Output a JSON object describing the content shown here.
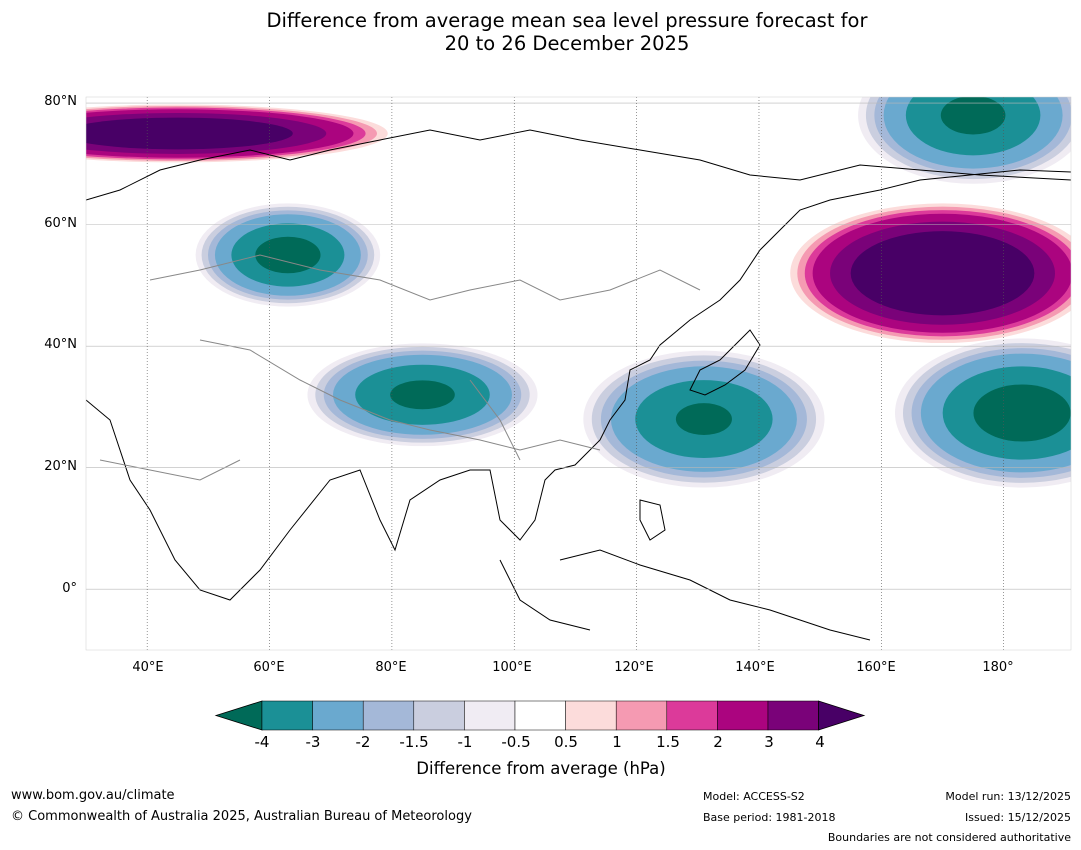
{
  "chart_data": {
    "type": "heatmap",
    "title_line1": "Difference from average mean sea level pressure forecast for",
    "title_line2": "20 to 26 December 2025",
    "x_axis": {
      "ticks": [
        "40°E",
        "60°E",
        "80°E",
        "100°E",
        "120°E",
        "140°E",
        "160°E",
        "180°"
      ],
      "range": [
        30,
        191
      ]
    },
    "y_axis": {
      "ticks": [
        "80°N",
        "60°N",
        "40°N",
        "20°N",
        "0°"
      ],
      "range": [
        -10,
        81
      ]
    },
    "colorbar": {
      "label": "Difference from average (hPa)",
      "tick_labels": [
        "-4",
        "-3",
        "-2",
        "-1.5",
        "-1",
        "-0.5",
        "0.5",
        "1",
        "1.5",
        "2",
        "3",
        "4"
      ],
      "levels": [
        -4,
        -3,
        -2,
        -1.5,
        -1,
        -0.5,
        0.5,
        1,
        1.5,
        2,
        3,
        4
      ],
      "colors": [
        "#006a58",
        "#1b9096",
        "#6aa9cf",
        "#a4b8d8",
        "#cacedf",
        "#f0ecf3",
        "#ffffff",
        "#fcdcdb",
        "#f59ab2",
        "#dc3a9a",
        "#ab047f",
        "#7a0279",
        "#480066"
      ],
      "extend": "both"
    },
    "anomaly_centres": [
      {
        "lon": 63,
        "lat": 55,
        "value": -4.5
      },
      {
        "lon": 85,
        "lat": 32,
        "value": -4.3
      },
      {
        "lon": 131,
        "lat": 28,
        "value": -4.2
      },
      {
        "lon": 183,
        "lat": 29,
        "value": -4.6
      },
      {
        "lon": 175,
        "lat": 78,
        "value": -4.3
      },
      {
        "lon": 45,
        "lat": 75,
        "value": 5.5
      },
      {
        "lon": 170,
        "lat": 52,
        "value": 6.0
      }
    ]
  },
  "footer": {
    "website": "www.bom.gov.au/climate",
    "copyright": "© Commonwealth of Australia 2025, Australian Bureau of Meteorology",
    "model": "Model: ACCESS-S2",
    "base_period": "Base period: 1981-2018",
    "model_run": "Model run: 13/12/2025",
    "issued": "Issued: 15/12/2025",
    "boundaries_note": "Boundaries are not considered authoritative"
  }
}
